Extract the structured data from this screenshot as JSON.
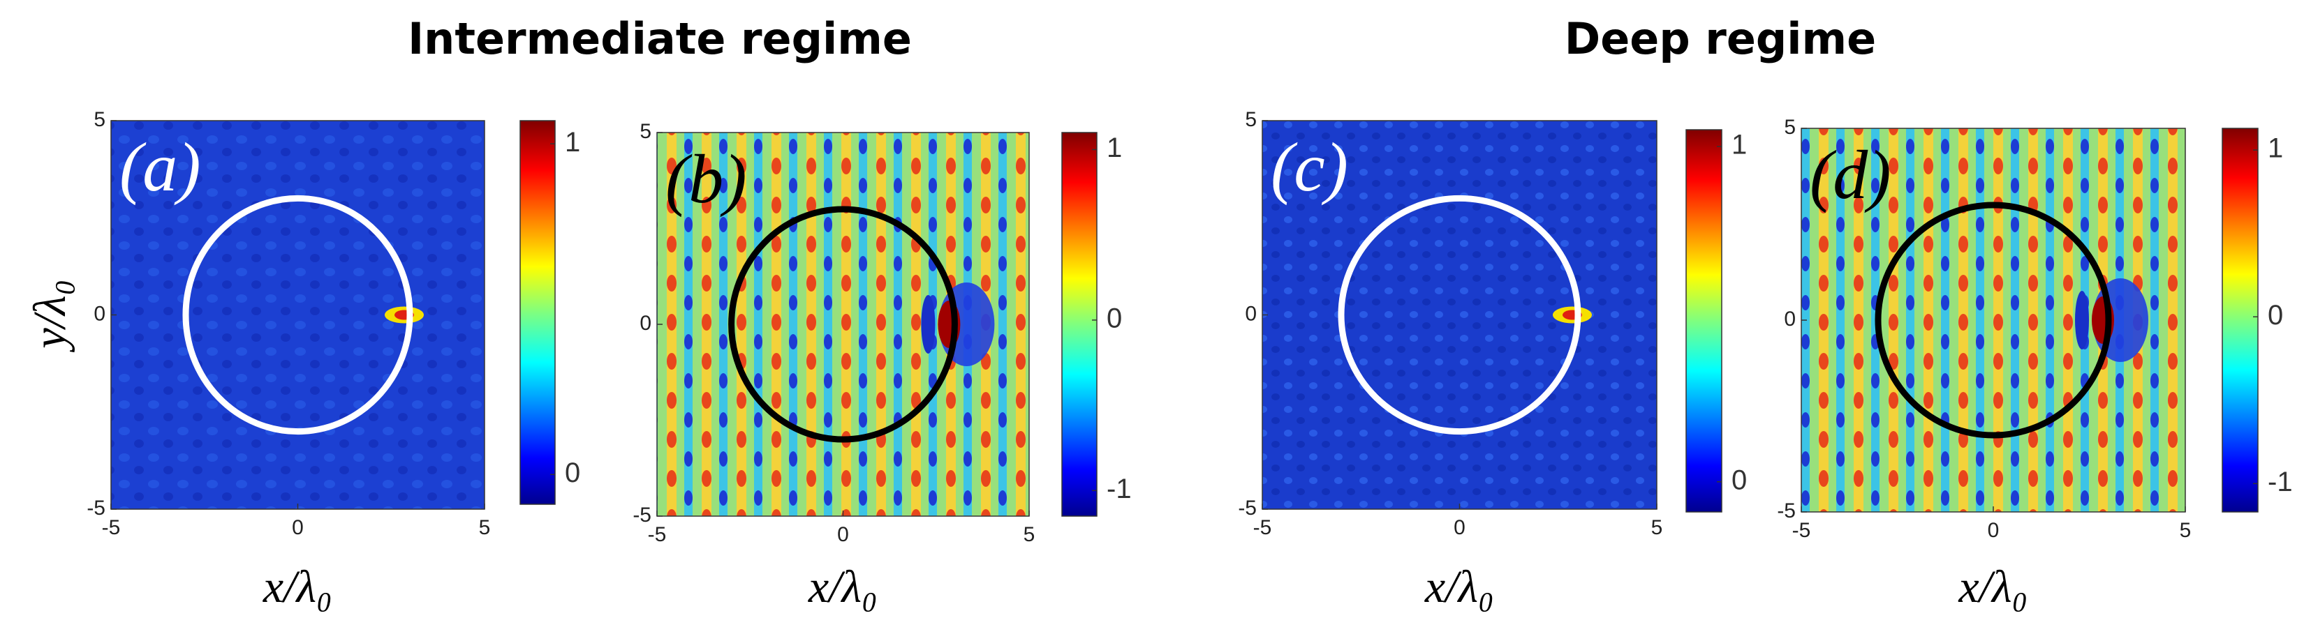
{
  "section_titles": [
    "Intermediate regime",
    "Deep regime"
  ],
  "y_label": "y/λ₀",
  "panels": [
    {
      "label": "(a)",
      "x_label": "x/λ₀",
      "xlim": [
        -5,
        5
      ],
      "ylim": [
        -5,
        5
      ],
      "xticks": [
        -5,
        0,
        5
      ],
      "yticks": [
        -5,
        0,
        5
      ],
      "colorbar": {
        "lim": [
          -0.09,
          1.07
        ],
        "ticks": [
          0,
          1
        ]
      },
      "scatterer": {
        "radius": 3,
        "color": "#ffffff"
      }
    },
    {
      "label": "(b)",
      "x_label": "x/λ₀",
      "xlim": [
        -5,
        5
      ],
      "ylim": [
        -5,
        5
      ],
      "xticks": [
        -5,
        0,
        5
      ],
      "yticks": [
        -5,
        0,
        5
      ],
      "colorbar": {
        "lim": [
          -1.15,
          1.1
        ],
        "ticks": [
          -1,
          0,
          1
        ]
      },
      "scatterer": {
        "radius": 3,
        "color": "#000000"
      }
    },
    {
      "label": "(c)",
      "x_label": "x/λ₀",
      "xlim": [
        -5,
        5
      ],
      "ylim": [
        -5,
        5
      ],
      "xticks": [
        -5,
        0,
        5
      ],
      "yticks": [
        -5,
        0,
        5
      ],
      "colorbar": {
        "lim": [
          -0.09,
          1.05
        ],
        "ticks": [
          0,
          1
        ]
      },
      "scatterer": {
        "radius": 3,
        "color": "#ffffff"
      }
    },
    {
      "label": "(d)",
      "x_label": "x/λ₀",
      "xlim": [
        -5,
        5
      ],
      "ylim": [
        -5,
        5
      ],
      "xticks": [
        -5,
        0,
        5
      ],
      "yticks": [
        -5,
        0,
        5
      ],
      "colorbar": {
        "lim": [
          -1.17,
          1.13
        ],
        "ticks": [
          -1,
          0,
          1
        ]
      },
      "scatterer": {
        "radius": 3,
        "color": "#000000"
      }
    }
  ]
}
